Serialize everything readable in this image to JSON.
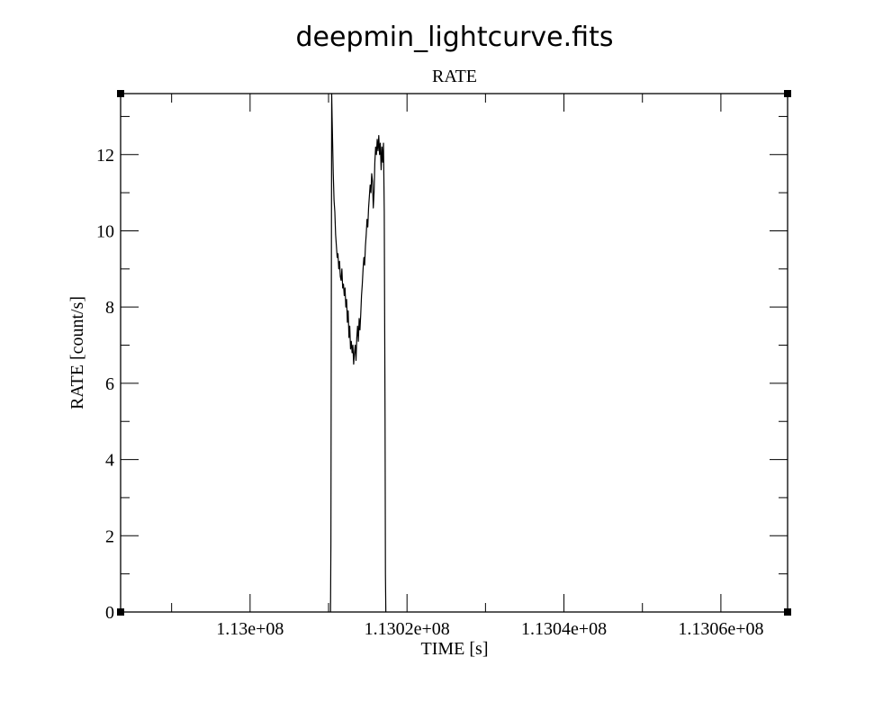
{
  "chart_data": {
    "type": "line",
    "title": "deepmin_lightcurve.fits",
    "subtitle": "RATE",
    "xlabel": "TIME [s]",
    "ylabel": "RATE [count/s]",
    "xlim": [
      112983500,
      113068500
    ],
    "ylim": [
      0,
      13.6
    ],
    "x_ticks": [
      113000000,
      113020000,
      113040000,
      113060000
    ],
    "x_tick_labels": [
      "1.13e+08",
      "1.1302e+08",
      "1.1304e+08",
      "1.1306e+08"
    ],
    "y_ticks": [
      0,
      2,
      4,
      6,
      8,
      10,
      12
    ],
    "y_tick_labels": [
      "0",
      "2",
      "4",
      "6",
      "8",
      "10",
      "12"
    ],
    "grid": false,
    "legend": "none",
    "series": [
      {
        "color": "#000000",
        "x": [
          113010250,
          113010300,
          113010400,
          113010450,
          113010500,
          113010600,
          113010700,
          113010800,
          113010900,
          113011000,
          113011100,
          113011200,
          113011300,
          113011400,
          113011500,
          113011600,
          113011700,
          113011800,
          113011900,
          113012000,
          113012100,
          113012200,
          113012300,
          113012400,
          113012500,
          113012600,
          113012700,
          113012800,
          113012900,
          113013000,
          113013100,
          113013200,
          113013300,
          113013400,
          113013500,
          113013600,
          113013700,
          113013800,
          113013900,
          113014000,
          113014100,
          113014200,
          113014300,
          113014400,
          113014500,
          113014600,
          113014700,
          113014800,
          113014900,
          113015000,
          113015100,
          113015200,
          113015300,
          113015400,
          113015500,
          113015600,
          113015700,
          113015800,
          113015900,
          113016000,
          113016100,
          113016200,
          113016300,
          113016400,
          113016500,
          113016600,
          113016700,
          113016800,
          113016900,
          113017000,
          113017100,
          113017200,
          113017250,
          113017300
        ],
        "y": [
          0,
          1.8,
          13.6,
          13.0,
          12.5,
          11.5,
          10.8,
          10.5,
          9.9,
          9.6,
          9.3,
          9.4,
          9.0,
          9.2,
          8.8,
          8.7,
          9.0,
          8.5,
          8.6,
          8.3,
          8.5,
          8.0,
          8.2,
          7.6,
          7.9,
          7.2,
          7.5,
          6.9,
          7.1,
          6.8,
          7.0,
          6.5,
          6.8,
          7.0,
          6.6,
          7.2,
          7.5,
          7.1,
          7.7,
          7.4,
          7.8,
          8.3,
          8.6,
          9.0,
          9.3,
          9.1,
          9.6,
          9.9,
          10.3,
          10.1,
          10.6,
          10.9,
          11.2,
          11.0,
          11.5,
          11.3,
          10.6,
          11.0,
          11.8,
          12.2,
          12.0,
          12.4,
          12.1,
          12.5,
          12.0,
          12.3,
          11.6,
          12.2,
          11.8,
          12.3,
          10.5,
          5.1,
          1.0,
          0
        ]
      }
    ]
  }
}
